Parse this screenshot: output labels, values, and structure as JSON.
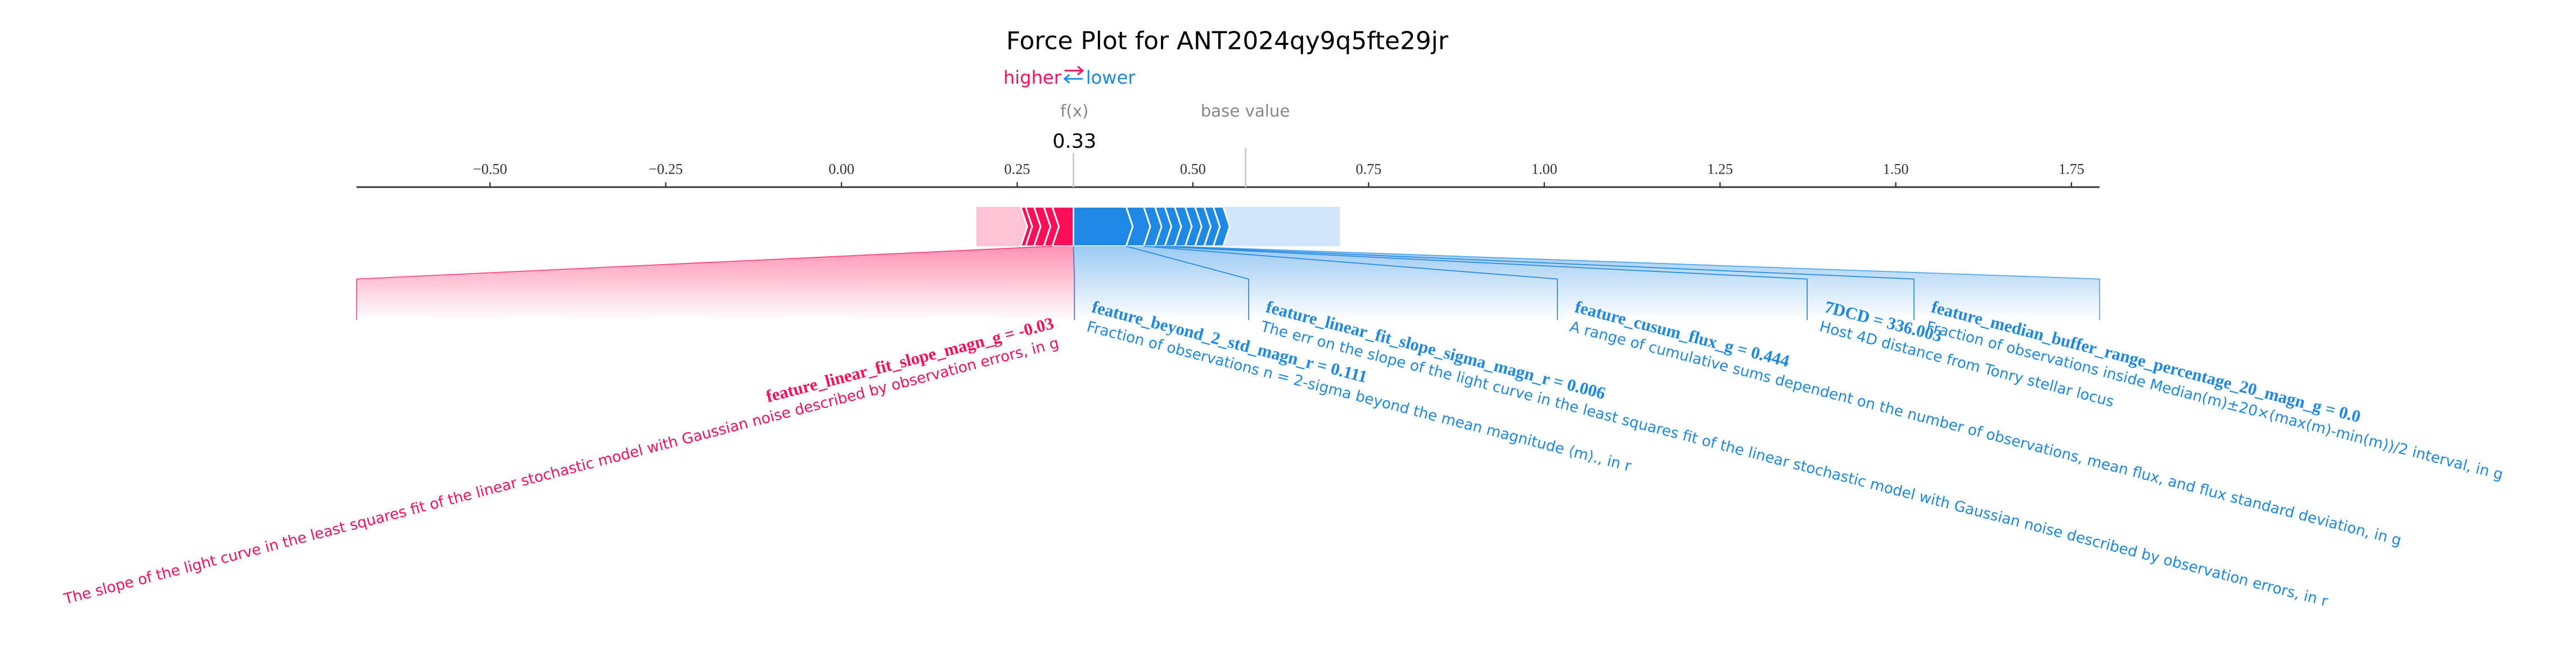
{
  "chart_data": {
    "type": "force",
    "title": "Force Plot for ANT2024qy9q5fte29jr",
    "higher_label": "higher",
    "lower_label": "lower",
    "fx_label": "f(x)",
    "fx": 0.33,
    "base_label": "base value",
    "base_value": 0.575,
    "xlim": [
      -0.69,
      1.79
    ],
    "xticks": [
      {
        "value": -0.5,
        "label": "−0.50"
      },
      {
        "value": -0.25,
        "label": "−0.25"
      },
      {
        "value": 0,
        "label": "0.00"
      },
      {
        "value": 0.25,
        "label": "0.25"
      },
      {
        "value": 0.5,
        "label": "0.50"
      },
      {
        "value": 0.75,
        "label": "0.75"
      },
      {
        "value": 1,
        "label": "1.00"
      },
      {
        "value": 1.25,
        "label": "1.25"
      },
      {
        "value": 1.5,
        "label": "1.50"
      },
      {
        "value": 1.75,
        "label": "1.75"
      }
    ],
    "positive": {
      "color": "#ff0d57",
      "faded_color": "#ffc3d5",
      "effects": [
        0.03,
        0.012,
        0.014,
        0.012,
        0.007,
        0.063
      ],
      "labels": [
        "feature_linear_fit_slope_magn_g = -0.03",
        null,
        null,
        null,
        null,
        null
      ],
      "descriptions": [
        "The slope of the light curve in the least squares fit of the linear stochastic model with Gaussian noise described by observation errors, in g",
        null,
        null,
        null,
        null,
        null
      ]
    },
    "negative": {
      "color": "#1e88e5",
      "faded_color": "#d1e6fa",
      "effects": [
        0.075,
        0.025,
        0.016,
        0.014,
        0.014,
        0.015,
        0.014,
        0.013,
        0.013,
        0.014,
        0.166
      ],
      "labels": [
        "feature_beyond_2_std_magn_r = 0.111",
        "feature_linear_fit_slope_sigma_magn_r = 0.006",
        "feature_cusum_flux_g = 0.444",
        "7DCD = 336.003",
        "feature_median_buffer_range_percentage_20_magn_g = 0.0",
        null,
        null,
        null,
        null,
        null,
        null
      ],
      "descriptions": [
        "Fraction of observations n = 2-sigma beyond the mean magnitude ⟨m⟩., in r",
        "The err on the slope of the light curve in the least squares fit of the linear stochastic model with Gaussian noise described by observation errors, in r",
        "A range of cumulative sums dependent on the number of observations, mean flux, and flux standard deviation, in g",
        "Host 4D distance from Tonry stellar locus",
        "Fraction of observations inside Median(m)±20×(max(m)-min(m))/2 interval, in g",
        null,
        null,
        null,
        null,
        null,
        null
      ]
    }
  }
}
